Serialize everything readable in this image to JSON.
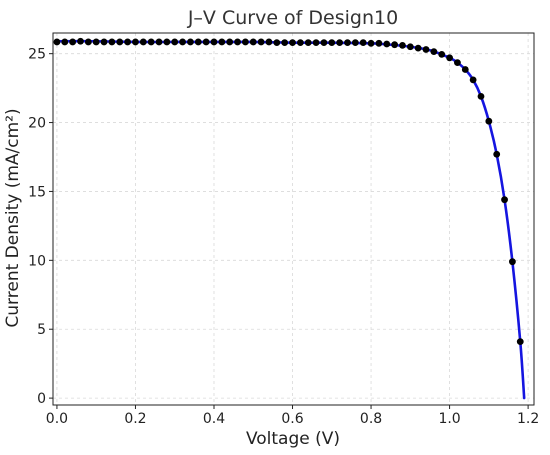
{
  "chart_data": {
    "type": "line",
    "title": "J–V Curve of Design10",
    "xlabel": "Voltage (V)",
    "ylabel": "Current Density (mA/cm²)",
    "xlim": [
      -0.01,
      1.215
    ],
    "ylim": [
      -0.5,
      26.5
    ],
    "xticks": [
      "0.0",
      "0.2",
      "0.4",
      "0.6",
      "0.8",
      "1.0",
      "1.2"
    ],
    "yticks": [
      "0",
      "5",
      "10",
      "15",
      "20",
      "25"
    ],
    "grid": true,
    "line_color": "#1515e0",
    "marker_color": "#000000",
    "curve": {
      "x": [
        0,
        0.1,
        0.2,
        0.3,
        0.4,
        0.5,
        0.6,
        0.7,
        0.8,
        0.85,
        0.9,
        0.95,
        1.0,
        1.02,
        1.04,
        1.06,
        1.08,
        1.1,
        1.12,
        1.14,
        1.16,
        1.18,
        1.19
      ],
      "y": [
        25.9,
        25.9,
        25.85,
        25.85,
        25.85,
        25.85,
        25.8,
        25.8,
        25.75,
        25.65,
        25.5,
        25.25,
        24.7,
        24.35,
        23.85,
        23.1,
        21.9,
        20.1,
        17.7,
        14.4,
        9.9,
        4.1,
        0
      ]
    },
    "points": {
      "x": [
        0,
        0.02,
        0.04,
        0.06,
        0.08,
        0.1,
        0.12,
        0.14,
        0.16,
        0.18,
        0.2,
        0.22,
        0.24,
        0.26,
        0.28,
        0.3,
        0.32,
        0.34,
        0.36,
        0.38,
        0.4,
        0.42,
        0.44,
        0.46,
        0.48,
        0.5,
        0.52,
        0.54,
        0.56,
        0.58,
        0.6,
        0.62,
        0.64,
        0.66,
        0.68,
        0.7,
        0.72,
        0.74,
        0.76,
        0.78,
        0.8,
        0.82,
        0.84,
        0.86,
        0.88,
        0.9,
        0.92,
        0.94,
        0.96,
        0.98,
        1.0,
        1.02,
        1.04,
        1.06,
        1.08,
        1.1,
        1.12,
        1.14,
        1.16,
        1.18
      ],
      "y": [
        25.85,
        25.85,
        25.85,
        25.9,
        25.85,
        25.85,
        25.85,
        25.85,
        25.85,
        25.85,
        25.85,
        25.85,
        25.85,
        25.85,
        25.85,
        25.85,
        25.85,
        25.85,
        25.85,
        25.85,
        25.85,
        25.85,
        25.85,
        25.85,
        25.85,
        25.85,
        25.85,
        25.85,
        25.8,
        25.8,
        25.8,
        25.8,
        25.8,
        25.8,
        25.8,
        25.8,
        25.8,
        25.8,
        25.8,
        25.8,
        25.75,
        25.75,
        25.7,
        25.65,
        25.6,
        25.5,
        25.4,
        25.3,
        25.15,
        24.95,
        24.7,
        24.35,
        23.85,
        23.1,
        21.9,
        20.1,
        17.7,
        14.4,
        9.9,
        4.1
      ]
    }
  }
}
